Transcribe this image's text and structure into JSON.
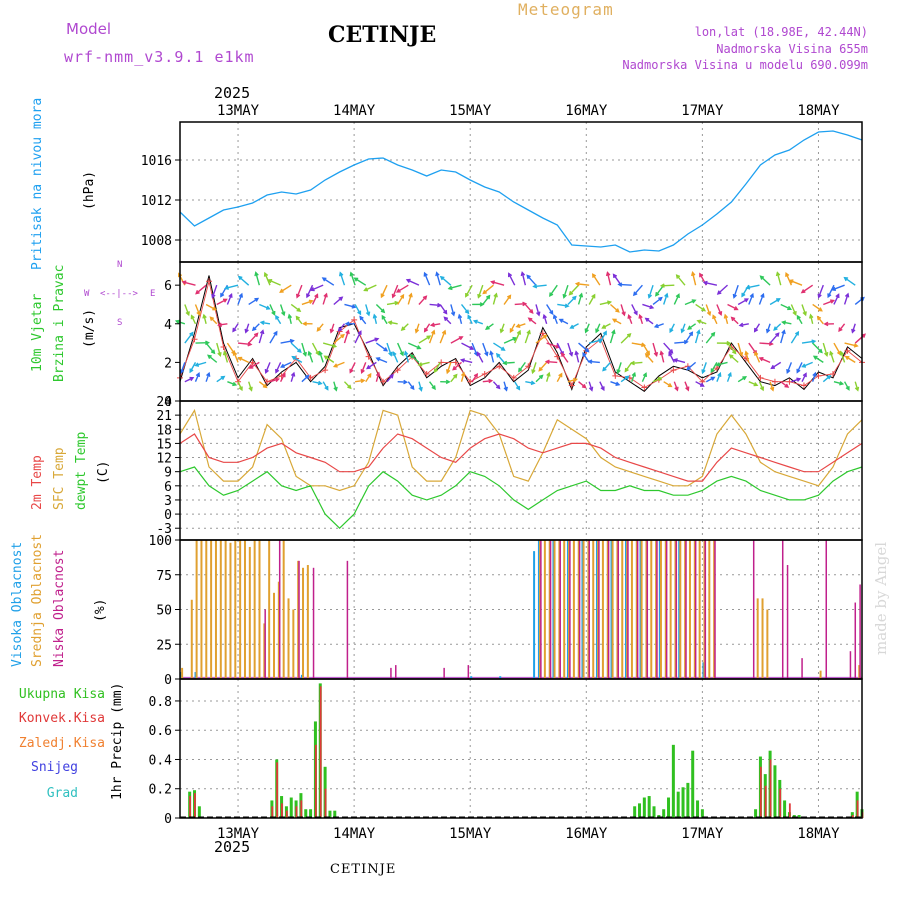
{
  "header": {
    "model_label": "Model",
    "model_name": "wrf-nmm_v3.9.1 e1km",
    "station": "CETINJE",
    "product": "Meteogram",
    "lonlat": "lon,lat (18.98E, 42.44N)",
    "elevation": "Nadmorska Visina 655m",
    "model_elevation": "Nadmorska Visina u modelu 690.099m",
    "year_top": "2025",
    "year_bottom": "2025",
    "footer_station": "CETINJE",
    "credit": "made by Angel"
  },
  "colors": {
    "pressure": "#1ea0f0",
    "temp2m": "#e84848",
    "sfc": "#d8a838",
    "dewpt": "#2ec82e",
    "high_cloud": "#20a0e8",
    "mid_cloud": "#e0a030",
    "low_cloud": "#c0208c",
    "total_precip": "#30c020",
    "conv_precip": "#e03838",
    "frz_precip": "#f08030",
    "snow": "#4040e0",
    "hail": "#30c0c0",
    "model_text": "#b048d0",
    "meteogram_text": "#e0b060"
  },
  "days": [
    "13MAY",
    "14MAY",
    "15MAY",
    "16MAY",
    "17MAY",
    "18MAY"
  ],
  "chart_data": [
    {
      "type": "line",
      "panel": "pressure",
      "labels": [
        "Pritisak na nivou mora",
        "(hPa)"
      ],
      "x_unit": "hours since 00 UTC 12 May 2025",
      "yticks": [
        1008,
        1012,
        1016
      ],
      "ylim": [
        1005.8,
        1019.8
      ],
      "series": [
        {
          "name": "pressure",
          "x": [
            0,
            3,
            6,
            9,
            12,
            15,
            18,
            21,
            24,
            27,
            30,
            33,
            36,
            39,
            42,
            45,
            48,
            51,
            54,
            57,
            60,
            63,
            66,
            69,
            72,
            75,
            78,
            81,
            84,
            87,
            90,
            93,
            96,
            99,
            102,
            105,
            108,
            111,
            114,
            117,
            120,
            123,
            126,
            129,
            132,
            135,
            138,
            141
          ],
          "values": [
            1010.8,
            1009.4,
            1010.2,
            1011.0,
            1011.3,
            1011.7,
            1012.5,
            1012.8,
            1012.6,
            1013.0,
            1014.0,
            1014.8,
            1015.5,
            1016.1,
            1016.2,
            1015.5,
            1015.0,
            1014.4,
            1015.0,
            1014.8,
            1014.0,
            1013.3,
            1012.8,
            1011.8,
            1011.0,
            1010.2,
            1009.5,
            1007.5,
            1007.4,
            1007.3,
            1007.5,
            1006.8,
            1007.0,
            1006.9,
            1007.5,
            1008.6,
            1009.5,
            1010.6,
            1011.8,
            1013.6,
            1015.5,
            1016.5,
            1017.0,
            1018.0,
            1018.8,
            1018.9,
            1018.5,
            1018.0
          ]
        }
      ]
    },
    {
      "type": "line",
      "panel": "wind",
      "labels": [
        "10m Vjetar",
        "Brzina i Pravac",
        "(m/s)"
      ],
      "legend": [
        "N",
        "W",
        "<--|-->",
        "E",
        "S"
      ],
      "yticks": [
        0,
        2,
        4,
        6
      ],
      "ylim": [
        0,
        7.2
      ],
      "series": [
        {
          "name": "wind speed",
          "x": [
            0,
            3,
            6,
            9,
            12,
            15,
            18,
            21,
            24,
            27,
            30,
            33,
            36,
            39,
            42,
            45,
            48,
            51,
            54,
            57,
            60,
            63,
            66,
            69,
            72,
            75,
            78,
            81,
            84,
            87,
            90,
            93,
            96,
            99,
            102,
            105,
            108,
            111,
            114,
            117,
            120,
            123,
            126,
            129,
            132,
            135,
            138,
            141
          ],
          "values": [
            1.0,
            3.5,
            6.5,
            3.0,
            1.2,
            2.2,
            0.8,
            1.5,
            2.0,
            1.0,
            1.8,
            3.8,
            4.0,
            2.5,
            0.8,
            1.8,
            2.5,
            1.2,
            1.8,
            2.2,
            0.8,
            1.2,
            2.0,
            1.0,
            1.6,
            3.8,
            2.5,
            0.6,
            2.8,
            3.5,
            1.5,
            1.0,
            0.5,
            1.3,
            1.8,
            1.6,
            1.2,
            1.5,
            3.0,
            2.0,
            1.0,
            0.8,
            1.2,
            0.6,
            1.5,
            1.2,
            2.8,
            2.2
          ]
        },
        {
          "name": "wind speed model",
          "x": [
            0,
            3,
            6,
            9,
            12,
            15,
            18,
            21,
            24,
            27,
            30,
            33,
            36,
            39,
            42,
            45,
            48,
            51,
            54,
            57,
            60,
            63,
            66,
            69,
            72,
            75,
            78,
            81,
            84,
            87,
            90,
            93,
            96,
            99,
            102,
            105,
            108,
            111,
            114,
            117,
            120,
            123,
            126,
            129,
            132,
            135,
            138,
            141
          ],
          "values": [
            1.2,
            3.2,
            6.2,
            2.8,
            1.0,
            2.0,
            1.0,
            1.3,
            2.2,
            1.2,
            1.6,
            3.6,
            4.2,
            2.3,
            1.0,
            1.6,
            2.3,
            1.4,
            2.0,
            2.0,
            1.0,
            1.4,
            1.8,
            1.2,
            1.8,
            3.5,
            2.3,
            0.8,
            2.6,
            3.2,
            1.3,
            1.2,
            0.7,
            1.1,
            1.6,
            1.8,
            1.0,
            1.7,
            2.8,
            2.2,
            1.2,
            1.0,
            1.0,
            0.8,
            1.3,
            1.4,
            2.6,
            2.0
          ]
        }
      ]
    },
    {
      "type": "line",
      "panel": "temperature",
      "labels": [
        "2m Temp",
        "SFC Temp",
        "dewpt Temp",
        "(C)"
      ],
      "yticks": [
        -3,
        0,
        3,
        6,
        9,
        12,
        15,
        18,
        21,
        24
      ],
      "ylim": [
        -5.5,
        24
      ],
      "series": [
        {
          "name": "2m Temp",
          "x": [
            0,
            3,
            6,
            9,
            12,
            15,
            18,
            21,
            24,
            27,
            30,
            33,
            36,
            39,
            42,
            45,
            48,
            51,
            54,
            57,
            60,
            63,
            66,
            69,
            72,
            75,
            78,
            81,
            84,
            87,
            90,
            93,
            96,
            99,
            102,
            105,
            108,
            111,
            114,
            117,
            120,
            123,
            126,
            129,
            132,
            135,
            138,
            141
          ],
          "values": [
            15,
            17,
            12,
            11,
            11,
            12,
            14,
            15,
            13,
            12,
            11,
            9,
            9,
            10,
            14,
            17,
            16,
            14,
            12,
            11,
            14,
            16,
            17,
            16,
            14,
            13,
            14,
            15,
            15,
            14,
            12,
            11,
            10,
            9,
            8,
            7,
            7,
            11,
            14,
            13,
            12,
            11,
            10,
            9,
            9,
            11,
            13,
            15
          ]
        },
        {
          "name": "SFC Temp",
          "x": [
            0,
            3,
            6,
            9,
            12,
            15,
            18,
            21,
            24,
            27,
            30,
            33,
            36,
            39,
            42,
            45,
            48,
            51,
            54,
            57,
            60,
            63,
            66,
            69,
            72,
            75,
            78,
            81,
            84,
            87,
            90,
            93,
            96,
            99,
            102,
            105,
            108,
            111,
            114,
            117,
            120,
            123,
            126,
            129,
            132,
            135,
            138,
            141
          ],
          "values": [
            17,
            22,
            10,
            7,
            7,
            10,
            19,
            16,
            8,
            6,
            6,
            5,
            6,
            11,
            22,
            21,
            10,
            7,
            7,
            12,
            22,
            21,
            17,
            8,
            7,
            13,
            20,
            18,
            16,
            12,
            10,
            9,
            8,
            7,
            6,
            6,
            8,
            17,
            21,
            17,
            11,
            9,
            8,
            7,
            6,
            10,
            17,
            20
          ]
        },
        {
          "name": "dewpt Temp",
          "x": [
            0,
            3,
            6,
            9,
            12,
            15,
            18,
            21,
            24,
            27,
            30,
            33,
            36,
            39,
            42,
            45,
            48,
            51,
            54,
            57,
            60,
            63,
            66,
            69,
            72,
            75,
            78,
            81,
            84,
            87,
            90,
            93,
            96,
            99,
            102,
            105,
            108,
            111,
            114,
            117,
            120,
            123,
            126,
            129,
            132,
            135,
            138,
            141
          ],
          "values": [
            9,
            10,
            6,
            4,
            5,
            7,
            9,
            6,
            5,
            6,
            0,
            -3,
            0,
            6,
            9,
            7,
            4,
            3,
            4,
            6,
            9,
            8,
            6,
            3,
            1,
            3,
            5,
            6,
            7,
            5,
            5,
            6,
            5,
            5,
            4,
            4,
            5,
            7,
            8,
            7,
            5,
            4,
            3,
            3,
            4,
            7,
            9,
            10
          ]
        }
      ]
    },
    {
      "type": "bar",
      "panel": "clouds",
      "labels": [
        "Visoka Oblacnost",
        "Srednja Oblacnost",
        "Niska Oblacnost",
        "(%)"
      ],
      "yticks": [
        0,
        25,
        50,
        75,
        100
      ],
      "ylim": [
        0,
        100
      ],
      "series": [
        {
          "name": "Visoka Oblacnost",
          "x": [
            0,
            3,
            25,
            60,
            66,
            73,
            74,
            77,
            80,
            83,
            86,
            89,
            92,
            95,
            99,
            103,
            108
          ],
          "values": [
            5,
            5,
            3,
            2,
            2,
            92,
            100,
            100,
            100,
            100,
            100,
            100,
            100,
            100,
            100,
            100,
            12
          ]
        },
        {
          "name": "Srednja Oblacnost",
          "x": [
            0,
            2,
            3,
            4,
            5,
            6,
            7,
            8,
            9,
            10,
            11,
            12,
            13,
            14,
            15,
            16,
            17,
            18,
            19,
            20,
            21,
            22,
            23,
            24,
            25,
            26,
            74,
            75,
            76,
            77,
            78,
            79,
            80,
            81,
            82,
            83,
            84,
            85,
            86,
            87,
            88,
            89,
            90,
            91,
            92,
            93,
            94,
            95,
            96,
            97,
            98,
            99,
            100,
            101,
            102,
            103,
            104,
            105,
            106,
            107,
            108,
            109,
            110,
            119,
            120,
            121,
            132,
            140
          ],
          "values": [
            8,
            57,
            100,
            100,
            100,
            100,
            100,
            100,
            100,
            98,
            100,
            100,
            100,
            95,
            100,
            100,
            40,
            100,
            62,
            70,
            100,
            58,
            50,
            85,
            80,
            82,
            100,
            100,
            100,
            100,
            100,
            100,
            100,
            100,
            100,
            100,
            100,
            100,
            100,
            100,
            100,
            100,
            100,
            100,
            100,
            100,
            100,
            100,
            100,
            100,
            100,
            100,
            100,
            100,
            100,
            100,
            100,
            100,
            100,
            100,
            100,
            100,
            100,
            58,
            58,
            50,
            6,
            10
          ]
        },
        {
          "name": "Niska Oblacnost",
          "x": [
            17,
            20,
            24,
            27,
            34,
            43,
            44,
            54,
            59,
            74,
            76,
            78,
            80,
            82,
            84,
            86,
            88,
            90,
            92,
            94,
            96,
            98,
            100,
            102,
            104,
            106,
            108,
            110,
            118,
            124,
            125,
            128,
            133,
            138,
            139,
            140
          ],
          "values": [
            50,
            100,
            85,
            80,
            85,
            8,
            10,
            8,
            10,
            100,
            100,
            100,
            100,
            100,
            100,
            100,
            100,
            100,
            100,
            100,
            100,
            100,
            100,
            100,
            100,
            100,
            100,
            100,
            100,
            100,
            82,
            15,
            100,
            20,
            55,
            68
          ]
        }
      ]
    },
    {
      "type": "bar",
      "panel": "precip",
      "labels": [
        "Ukupna Kisa",
        "Konvek.Kisa",
        "Zaledj.Kisa",
        "Snijeg",
        "Grad",
        "1hr Precip (mm)"
      ],
      "yticks": [
        0,
        0.2,
        0.4,
        0.6,
        0.8
      ],
      "ylim": [
        0,
        0.95
      ],
      "series": [
        {
          "name": "Ukupna Kisa",
          "x": [
            2,
            3,
            4,
            19,
            20,
            21,
            22,
            23,
            24,
            25,
            26,
            27,
            28,
            29,
            30,
            31,
            32,
            94,
            95,
            96,
            97,
            98,
            99,
            100,
            101,
            102,
            103,
            104,
            105,
            106,
            107,
            108,
            119,
            120,
            121,
            122,
            123,
            124,
            125,
            126,
            127,
            128,
            139,
            140,
            141
          ],
          "values": [
            0.18,
            0.19,
            0.08,
            0.12,
            0.4,
            0.15,
            0.08,
            0.14,
            0.12,
            0.17,
            0.06,
            0.06,
            0.66,
            0.92,
            0.35,
            0.05,
            0.05,
            0.08,
            0.1,
            0.14,
            0.15,
            0.08,
            0.02,
            0.06,
            0.14,
            0.5,
            0.18,
            0.21,
            0.24,
            0.46,
            0.12,
            0.06,
            0.06,
            0.42,
            0.3,
            0.46,
            0.36,
            0.26,
            0.12,
            0.04,
            0.02,
            0.02,
            0.04,
            0.18,
            0.06
          ]
        },
        {
          "name": "Konvek.Kisa",
          "x": [
            2,
            3,
            19,
            20,
            21,
            22,
            24,
            25,
            28,
            29,
            30,
            120,
            121,
            122,
            124,
            126,
            139,
            140,
            141
          ],
          "values": [
            0.15,
            0.17,
            0.08,
            0.38,
            0.1,
            0.05,
            0.08,
            0.12,
            0.5,
            0.9,
            0.2,
            0.35,
            0.22,
            0.4,
            0.2,
            0.1,
            0.02,
            0.12,
            0.04
          ]
        }
      ]
    }
  ]
}
